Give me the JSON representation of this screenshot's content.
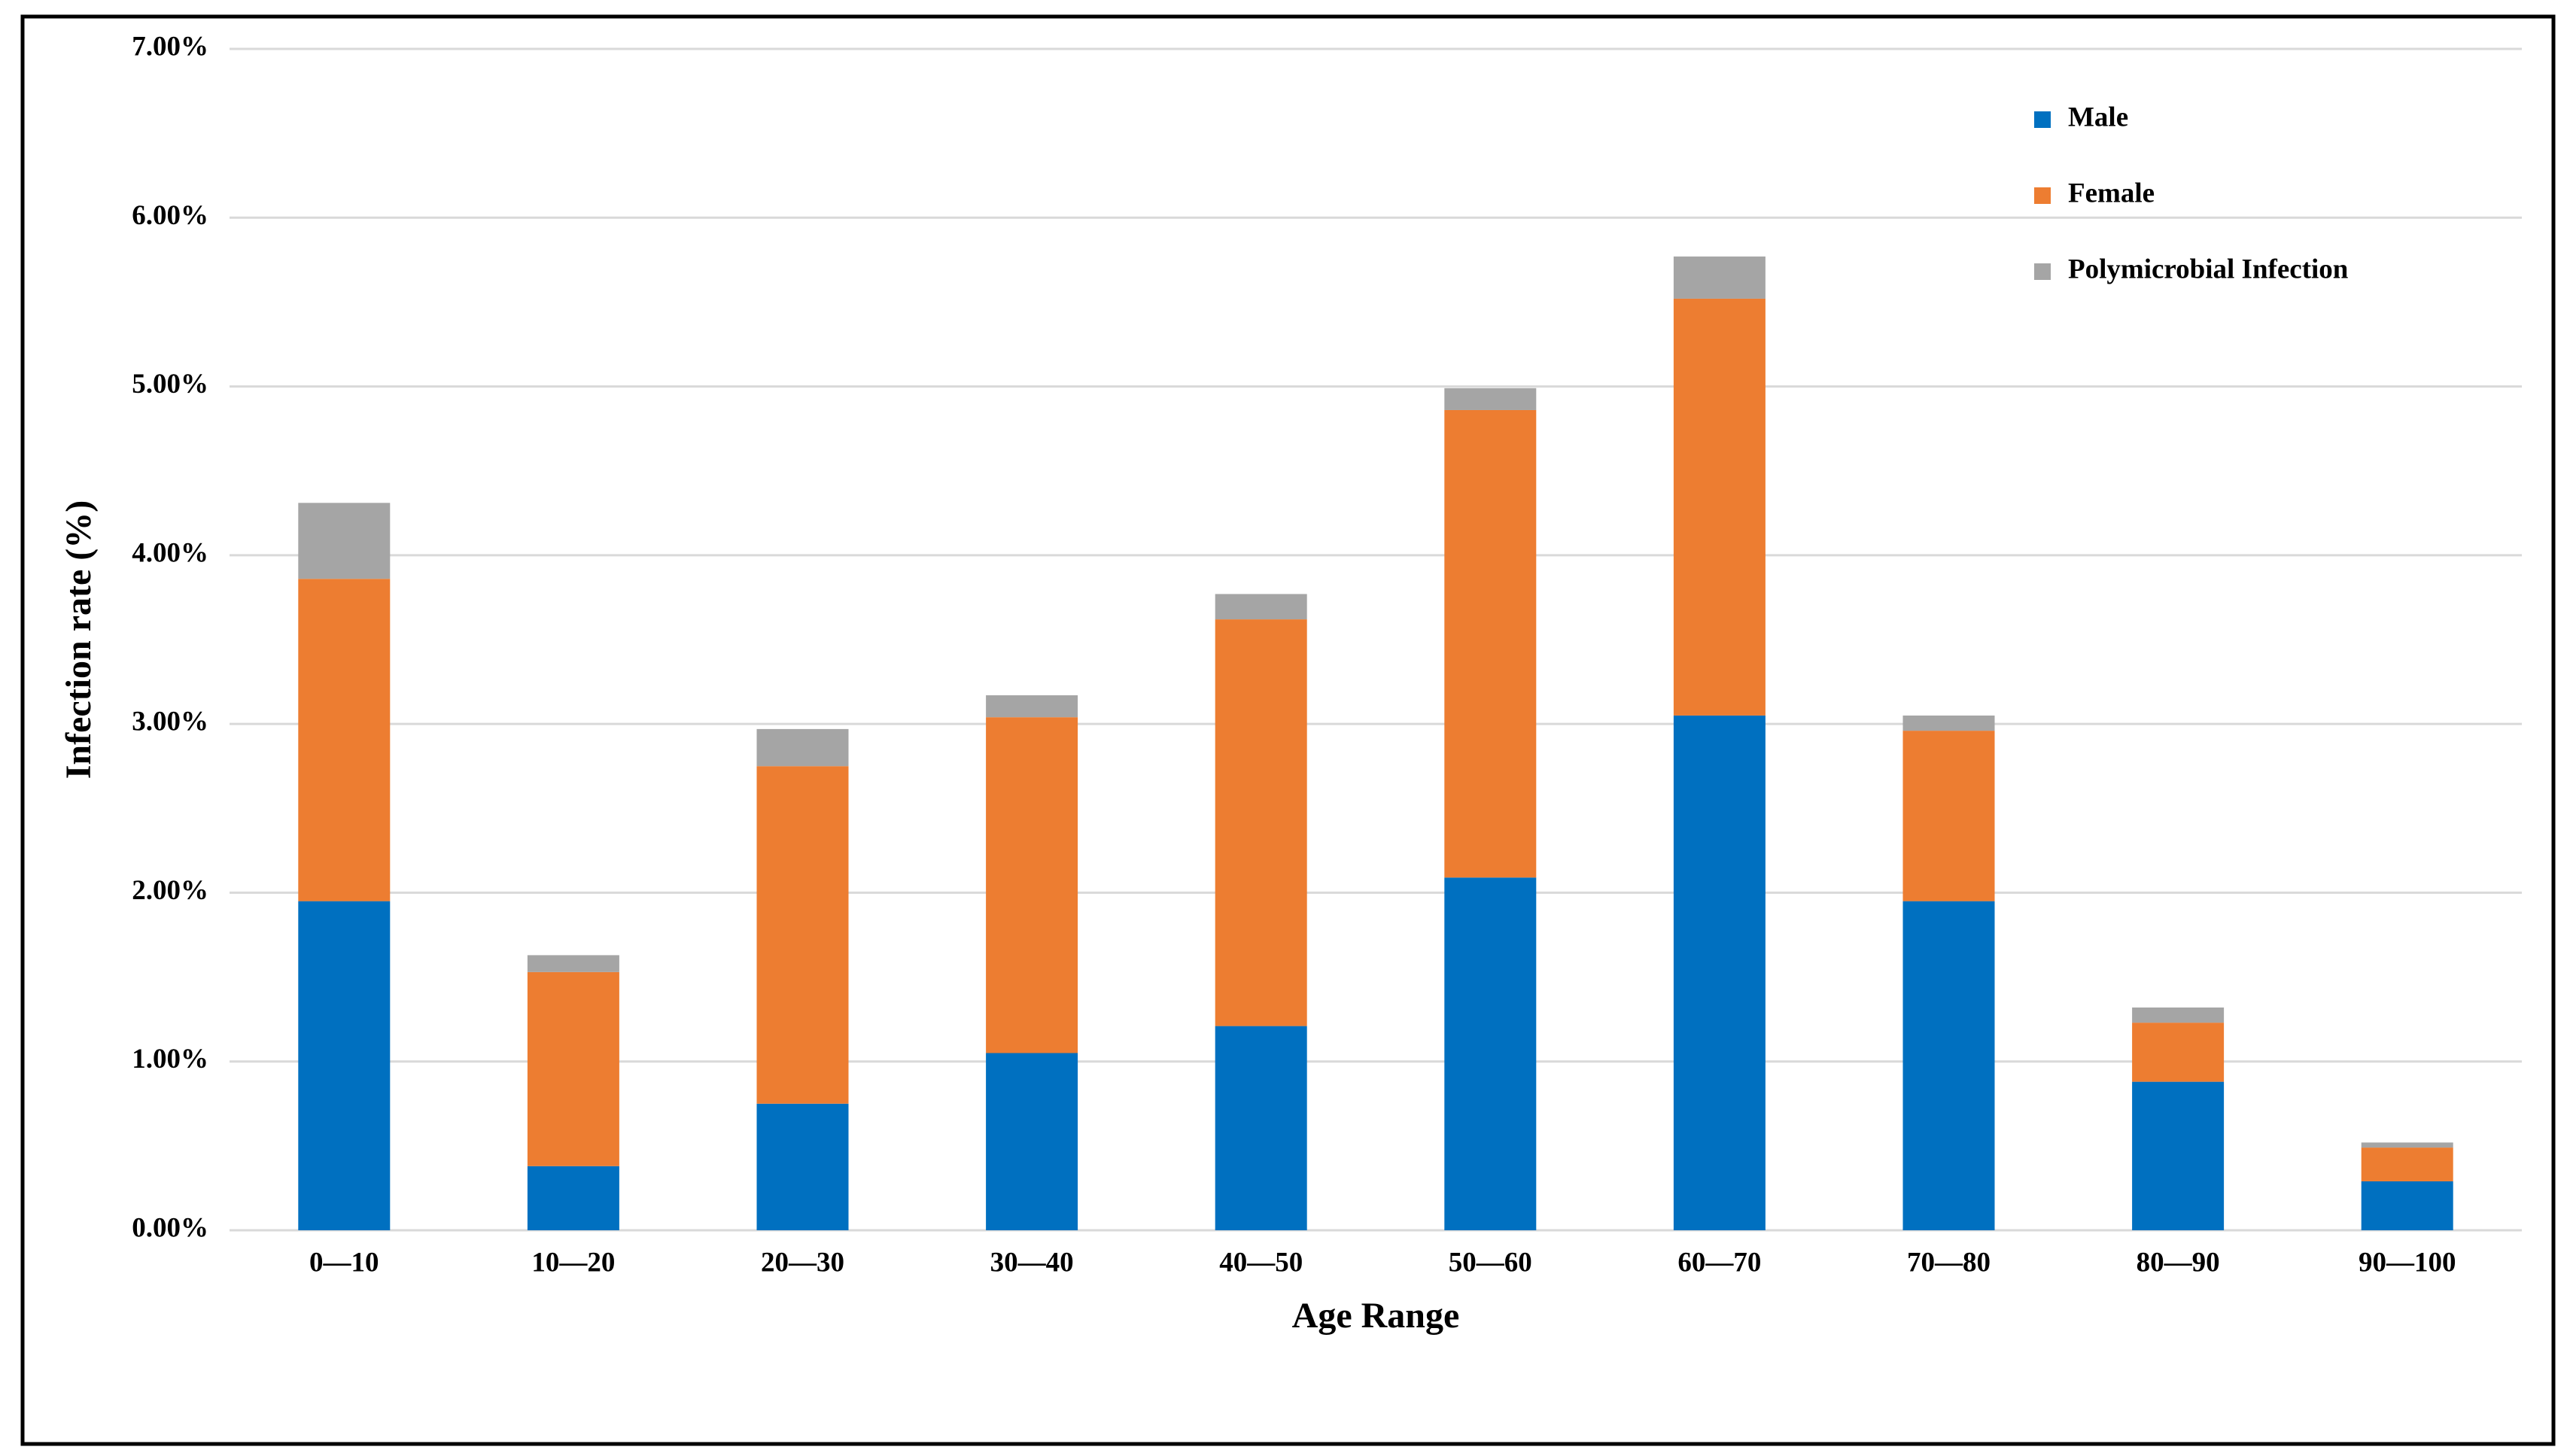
{
  "chart_data": {
    "type": "stacked-bar",
    "x_label": "Age Range",
    "y_label": "Infection rate (%)",
    "categories": [
      "0—10",
      "10—20",
      "20—30",
      "30—40",
      "40—50",
      "50—60",
      "60—70",
      "70—80",
      "80—90",
      "90—100"
    ],
    "series": [
      {
        "name": "Male",
        "color": "#0070c0",
        "values": [
          1.95,
          0.38,
          0.75,
          1.05,
          1.21,
          2.09,
          3.05,
          1.95,
          0.88,
          0.29
        ]
      },
      {
        "name": "Female",
        "color": "#ed7d31",
        "values": [
          1.91,
          1.15,
          2.0,
          1.99,
          2.41,
          2.77,
          2.47,
          1.01,
          0.35,
          0.2
        ]
      },
      {
        "name": "Polymicrobial Infection",
        "color": "#a5a5a5",
        "values": [
          0.45,
          0.1,
          0.22,
          0.13,
          0.15,
          0.13,
          0.25,
          0.09,
          0.09,
          0.03
        ]
      }
    ],
    "ylim": [
      0,
      7
    ],
    "yticks": [
      {
        "value": 0,
        "label": "0.00%"
      },
      {
        "value": 1,
        "label": "1.00%"
      },
      {
        "value": 2,
        "label": "2.00%"
      },
      {
        "value": 3,
        "label": "3.00%"
      },
      {
        "value": 4,
        "label": "4.00%"
      },
      {
        "value": 5,
        "label": "5.00%"
      },
      {
        "value": 6,
        "label": "6.00%"
      },
      {
        "value": 7,
        "label": "7.00%"
      }
    ],
    "grid": true,
    "legend": "upper-right"
  }
}
